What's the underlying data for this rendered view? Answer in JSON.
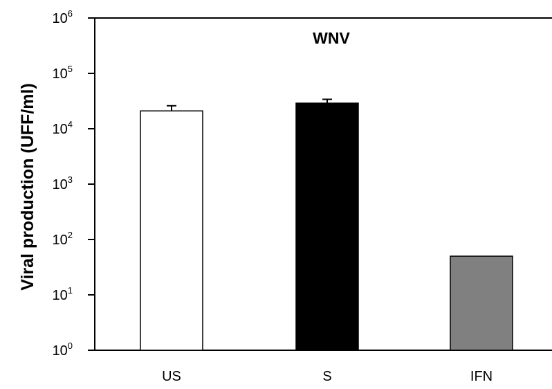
{
  "chart_data": {
    "type": "bar",
    "title": "WNV",
    "xlabel": "",
    "ylabel": "Viral production (UFF/ml)",
    "y_scale": "log",
    "ylim": [
      1,
      1000000
    ],
    "y_ticks": [
      {
        "base": "10",
        "exp": "0",
        "value": 1
      },
      {
        "base": "10",
        "exp": "1",
        "value": 10
      },
      {
        "base": "10",
        "exp": "2",
        "value": 100
      },
      {
        "base": "10",
        "exp": "3",
        "value": 1000
      },
      {
        "base": "10",
        "exp": "4",
        "value": 10000
      },
      {
        "base": "10",
        "exp": "5",
        "value": 100000
      },
      {
        "base": "10",
        "exp": "6",
        "value": 1000000
      }
    ],
    "categories": [
      "US",
      "S",
      "IFN"
    ],
    "values": [
      21000,
      29000,
      50
    ],
    "errors": [
      5000,
      5000,
      0
    ],
    "bar_colors": [
      "#ffffff",
      "#000000",
      "#808080"
    ],
    "grid": false,
    "legend": "none"
  }
}
